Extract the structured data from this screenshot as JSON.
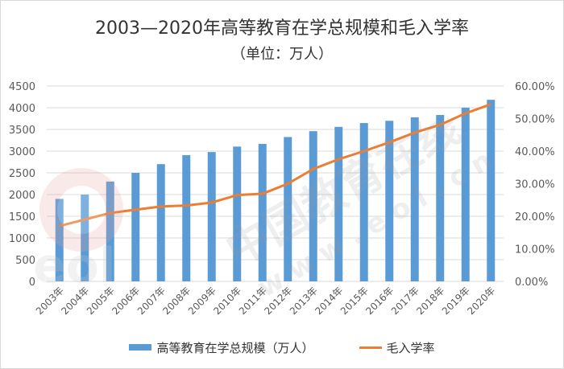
{
  "chart_data": {
    "type": "bar+line",
    "title": "2003—2020年高等教育在学总规模和毛入学率",
    "subtitle": "（单位：万人）",
    "categories": [
      "2003年",
      "2004年",
      "2005年",
      "2006年",
      "2007年",
      "2008年",
      "2009年",
      "2010年",
      "2011年",
      "2012年",
      "2013年",
      "2014年",
      "2015年",
      "2016年",
      "2017年",
      "2018年",
      "2019年",
      "2020年"
    ],
    "series": [
      {
        "name": "高等教育在学总规模（万人）",
        "type": "bar",
        "axis": "left",
        "values": [
          1900,
          2000,
          2300,
          2500,
          2700,
          2907,
          2979,
          3105,
          3167,
          3325,
          3460,
          3559,
          3647,
          3699,
          3779,
          3833,
          4002,
          4183
        ]
      },
      {
        "name": "毛入学率",
        "type": "line",
        "axis": "right",
        "values": [
          17.0,
          19.0,
          21.0,
          22.0,
          23.0,
          23.3,
          24.2,
          26.5,
          26.9,
          30.0,
          34.5,
          37.5,
          40.0,
          42.7,
          45.7,
          48.1,
          51.6,
          54.4
        ]
      }
    ],
    "y_left": {
      "ticks": [
        "0",
        "500",
        "1000",
        "1500",
        "2000",
        "2500",
        "3000",
        "3500",
        "4000",
        "4500"
      ],
      "min": 0,
      "max": 4500
    },
    "y_right": {
      "ticks": [
        "0.00%",
        "10.00%",
        "20.00%",
        "30.00%",
        "40.00%",
        "50.00%",
        "60.00%"
      ],
      "min": 0,
      "max": 60
    },
    "grid": true,
    "legend": "bottom",
    "colors": {
      "bar": "#5b9bd5",
      "line": "#ed7d31",
      "grid": "#d9d9d9",
      "axis_text": "#595959"
    }
  },
  "watermark": {
    "text_cn": "中国教育在线",
    "text_url": "w w w . e o l . c n",
    "logo": "eol"
  }
}
